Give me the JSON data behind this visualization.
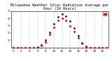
{
  "title": "Milwaukee Weather Solar Radiation Average per Hour (24 Hours)",
  "hours": [
    0,
    1,
    2,
    3,
    4,
    5,
    6,
    7,
    8,
    9,
    10,
    11,
    12,
    13,
    14,
    15,
    16,
    17,
    18,
    19,
    20,
    21,
    22,
    23
  ],
  "solar_avg": [
    0,
    0,
    0,
    0,
    0,
    0,
    2,
    25,
    80,
    180,
    280,
    370,
    400,
    370,
    300,
    220,
    130,
    55,
    10,
    1,
    0,
    0,
    0,
    0
  ],
  "solar_max": [
    0,
    0,
    0,
    0,
    0,
    0,
    5,
    35,
    100,
    210,
    320,
    420,
    460,
    430,
    360,
    270,
    160,
    70,
    15,
    2,
    0,
    0,
    0,
    0
  ],
  "ylim": [
    0,
    500
  ],
  "yticks": [
    100,
    200,
    300,
    400,
    500
  ],
  "ytick_labels": [
    "1",
    "2",
    "3",
    "4",
    "5"
  ],
  "background_color": "#ffffff",
  "dot_color_avg": "#ff0000",
  "dot_color_max": "#000000",
  "grid_color": "#888888",
  "legend_color": "#ff0000",
  "title_fontsize": 3.8,
  "tick_fontsize": 3.0
}
